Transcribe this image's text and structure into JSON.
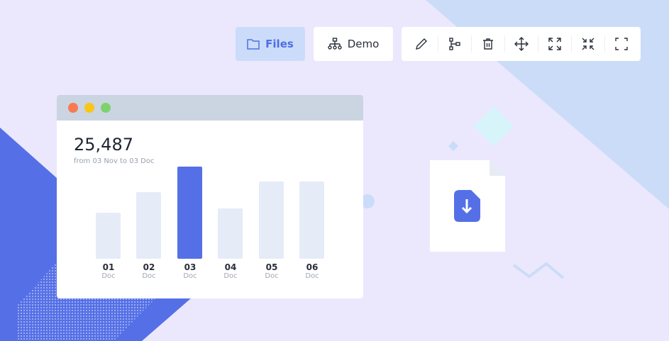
{
  "toolbar": {
    "files_label": "Files",
    "demo_label": "Demo",
    "tools": [
      "edit-icon",
      "flow-icon",
      "trash-icon",
      "move-icon",
      "expand-icon",
      "collapse-icon",
      "fullscreen-icon"
    ]
  },
  "card": {
    "total": "25,487",
    "range": "from 03 Nov to 03 Doc"
  },
  "colors": {
    "accent": "#5570e6",
    "bar": "#e6ebf8",
    "files_bg": "#cbdcfa"
  },
  "chart_data": {
    "type": "bar",
    "categories": [
      "01",
      "02",
      "03",
      "04",
      "05",
      "06"
    ],
    "sublabels": [
      "Doc",
      "Doc",
      "Doc",
      "Doc",
      "Doc",
      "Doc"
    ],
    "values": [
      50,
      72,
      100,
      55,
      84,
      84
    ],
    "highlight": "03"
  }
}
